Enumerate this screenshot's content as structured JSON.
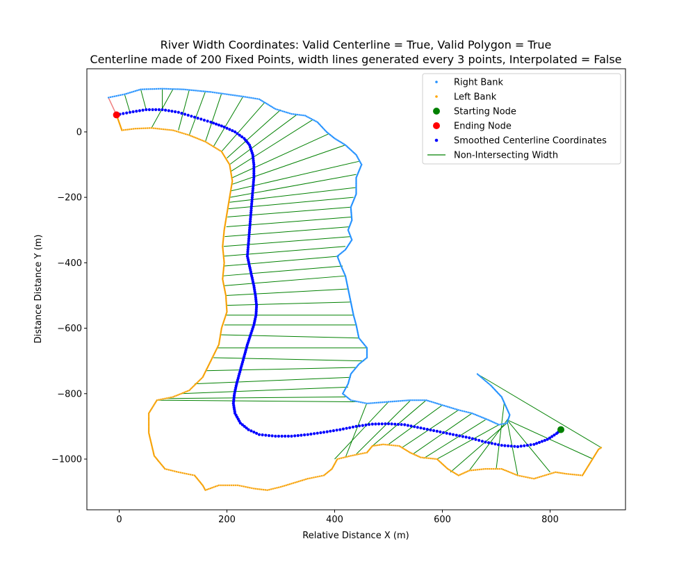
{
  "chart_data": {
    "type": "scatter",
    "title_line1": "River Width Coordinates: Valid Centerline = True, Valid Polygon = True",
    "title_line2": "Centerline made of 200 Fixed Points, width lines generated every 3 points, Interpolated = False",
    "xlabel": "Relative Distance X (m)",
    "ylabel": "Distance Distance Y (m)",
    "xlim": [
      -60,
      940
    ],
    "ylim": [
      -1155,
      193
    ],
    "xticks": [
      0,
      200,
      400,
      600,
      800
    ],
    "yticks": [
      0,
      -200,
      -400,
      -600,
      -800,
      -1000
    ],
    "legend_position": "upper right",
    "grid": false,
    "legend": [
      {
        "label": "Right Bank",
        "color": "#1f8fff",
        "marker": "dot-small"
      },
      {
        "label": "Left Bank",
        "color": "#ffa500",
        "marker": "dot-small"
      },
      {
        "label": "Starting Node",
        "color": "#008000",
        "marker": "dot-large"
      },
      {
        "label": "Ending Node",
        "color": "#ff0000",
        "marker": "dot-large"
      },
      {
        "label": "Smoothed Centerline Coordinates",
        "color": "#0000ff",
        "marker": "dot-medium"
      },
      {
        "label": "Non-Intersecting Width",
        "color": "#008000",
        "marker": "line"
      }
    ],
    "right_bank": [
      [
        -20,
        105
      ],
      [
        10,
        115
      ],
      [
        40,
        130
      ],
      [
        80,
        132
      ],
      [
        120,
        130
      ],
      [
        150,
        125
      ],
      [
        170,
        122
      ],
      [
        200,
        115
      ],
      [
        230,
        108
      ],
      [
        260,
        100
      ],
      [
        290,
        70
      ],
      [
        320,
        55
      ],
      [
        345,
        50
      ],
      [
        368,
        30
      ],
      [
        385,
        0
      ],
      [
        400,
        -20
      ],
      [
        420,
        -40
      ],
      [
        440,
        -70
      ],
      [
        450,
        -100
      ],
      [
        440,
        -140
      ],
      [
        440,
        -190
      ],
      [
        430,
        -230
      ],
      [
        432,
        -270
      ],
      [
        425,
        -300
      ],
      [
        432,
        -330
      ],
      [
        420,
        -360
      ],
      [
        405,
        -380
      ],
      [
        412,
        -410
      ],
      [
        420,
        -440
      ],
      [
        425,
        -480
      ],
      [
        430,
        -520
      ],
      [
        435,
        -560
      ],
      [
        440,
        -590
      ],
      [
        445,
        -630
      ],
      [
        460,
        -660
      ],
      [
        460,
        -690
      ],
      [
        445,
        -710
      ],
      [
        430,
        -740
      ],
      [
        425,
        -770
      ],
      [
        415,
        -800
      ],
      [
        430,
        -820
      ],
      [
        460,
        -830
      ],
      [
        500,
        -825
      ],
      [
        540,
        -820
      ],
      [
        570,
        -820
      ],
      [
        600,
        -835
      ],
      [
        630,
        -850
      ],
      [
        655,
        -860
      ],
      [
        685,
        -880
      ],
      [
        705,
        -895
      ],
      [
        720,
        -890
      ],
      [
        725,
        -865
      ],
      [
        710,
        -810
      ],
      [
        690,
        -775
      ],
      [
        665,
        -740
      ]
    ],
    "left_bank": [
      [
        -5,
        52
      ],
      [
        5,
        5
      ],
      [
        30,
        10
      ],
      [
        60,
        12
      ],
      [
        100,
        5
      ],
      [
        130,
        -10
      ],
      [
        160,
        -30
      ],
      [
        190,
        -60
      ],
      [
        205,
        -100
      ],
      [
        210,
        -150
      ],
      [
        205,
        -200
      ],
      [
        200,
        -250
      ],
      [
        195,
        -300
      ],
      [
        192,
        -350
      ],
      [
        195,
        -400
      ],
      [
        192,
        -450
      ],
      [
        198,
        -500
      ],
      [
        200,
        -550
      ],
      [
        190,
        -600
      ],
      [
        185,
        -650
      ],
      [
        170,
        -700
      ],
      [
        155,
        -750
      ],
      [
        130,
        -790
      ],
      [
        100,
        -810
      ],
      [
        70,
        -820
      ],
      [
        55,
        -860
      ],
      [
        55,
        -920
      ],
      [
        65,
        -990
      ],
      [
        85,
        -1030
      ],
      [
        110,
        -1040
      ],
      [
        140,
        -1050
      ],
      [
        155,
        -1080
      ],
      [
        160,
        -1095
      ],
      [
        185,
        -1080
      ],
      [
        220,
        -1080
      ],
      [
        250,
        -1090
      ],
      [
        275,
        -1095
      ],
      [
        300,
        -1085
      ],
      [
        320,
        -1075
      ],
      [
        350,
        -1060
      ],
      [
        380,
        -1050
      ],
      [
        395,
        -1030
      ],
      [
        405,
        -1000
      ],
      [
        430,
        -990
      ],
      [
        460,
        -980
      ],
      [
        470,
        -960
      ],
      [
        490,
        -955
      ],
      [
        520,
        -960
      ],
      [
        540,
        -980
      ],
      [
        560,
        -995
      ],
      [
        590,
        -1000
      ],
      [
        610,
        -1030
      ],
      [
        630,
        -1050
      ],
      [
        650,
        -1035
      ],
      [
        680,
        -1030
      ],
      [
        710,
        -1030
      ],
      [
        740,
        -1050
      ],
      [
        770,
        -1060
      ],
      [
        790,
        -1050
      ],
      [
        810,
        -1040
      ],
      [
        830,
        -1045
      ],
      [
        860,
        -1050
      ],
      [
        875,
        -1010
      ],
      [
        890,
        -970
      ],
      [
        895,
        -965
      ]
    ],
    "centerline": [
      [
        -5,
        52
      ],
      [
        20,
        60
      ],
      [
        50,
        68
      ],
      [
        80,
        68
      ],
      [
        110,
        60
      ],
      [
        140,
        45
      ],
      [
        170,
        30
      ],
      [
        195,
        15
      ],
      [
        215,
        0
      ],
      [
        232,
        -20
      ],
      [
        242,
        -40
      ],
      [
        248,
        -70
      ],
      [
        250,
        -100
      ],
      [
        250,
        -140
      ],
      [
        248,
        -180
      ],
      [
        246,
        -220
      ],
      [
        244,
        -260
      ],
      [
        242,
        -300
      ],
      [
        240,
        -340
      ],
      [
        238,
        -380
      ],
      [
        242,
        -410
      ],
      [
        246,
        -440
      ],
      [
        250,
        -470
      ],
      [
        253,
        -500
      ],
      [
        255,
        -530
      ],
      [
        254,
        -560
      ],
      [
        250,
        -590
      ],
      [
        244,
        -620
      ],
      [
        238,
        -650
      ],
      [
        233,
        -680
      ],
      [
        228,
        -710
      ],
      [
        223,
        -740
      ],
      [
        218,
        -770
      ],
      [
        214,
        -800
      ],
      [
        212,
        -830
      ],
      [
        215,
        -860
      ],
      [
        225,
        -890
      ],
      [
        240,
        -910
      ],
      [
        260,
        -925
      ],
      [
        290,
        -930
      ],
      [
        320,
        -930
      ],
      [
        350,
        -925
      ],
      [
        380,
        -918
      ],
      [
        410,
        -910
      ],
      [
        440,
        -900
      ],
      [
        470,
        -893
      ],
      [
        500,
        -892
      ],
      [
        530,
        -895
      ],
      [
        560,
        -905
      ],
      [
        590,
        -915
      ],
      [
        620,
        -925
      ],
      [
        650,
        -935
      ],
      [
        680,
        -948
      ],
      [
        710,
        -958
      ],
      [
        740,
        -962
      ],
      [
        770,
        -955
      ],
      [
        795,
        -940
      ],
      [
        812,
        -922
      ],
      [
        820,
        -910
      ]
    ],
    "start_node": [
      820,
      -910
    ],
    "end_node": [
      -5,
      52
    ],
    "closing_segment": [
      [
        -20,
        105
      ],
      [
        -5,
        52
      ],
      [
        5,
        5
      ]
    ],
    "gap_segment": [
      [
        570,
        -820
      ],
      [
        600,
        -835
      ]
    ],
    "width_lines": [
      [
        [
          10,
          115
        ],
        [
          20,
          60
        ]
      ],
      [
        [
          40,
          130
        ],
        [
          50,
          68
        ]
      ],
      [
        [
          80,
          132
        ],
        [
          80,
          68
        ]
      ],
      [
        [
          100,
          131
        ],
        [
          60,
          12
        ]
      ],
      [
        [
          130,
          128
        ],
        [
          110,
          5
        ]
      ],
      [
        [
          160,
          123
        ],
        [
          130,
          -10
        ]
      ],
      [
        [
          190,
          117
        ],
        [
          160,
          -30
        ]
      ],
      [
        [
          230,
          108
        ],
        [
          175,
          -45
        ]
      ],
      [
        [
          270,
          90
        ],
        [
          190,
          -60
        ]
      ],
      [
        [
          300,
          68
        ],
        [
          200,
          -80
        ]
      ],
      [
        [
          330,
          53
        ],
        [
          205,
          -100
        ]
      ],
      [
        [
          360,
          38
        ],
        [
          208,
          -120
        ]
      ],
      [
        [
          390,
          -5
        ],
        [
          210,
          -140
        ]
      ],
      [
        [
          420,
          -40
        ],
        [
          210,
          -160
        ]
      ],
      [
        [
          445,
          -90
        ],
        [
          208,
          -180
        ]
      ],
      [
        [
          440,
          -130
        ],
        [
          206,
          -200
        ]
      ],
      [
        [
          440,
          -170
        ],
        [
          205,
          -215
        ]
      ],
      [
        [
          435,
          -200
        ],
        [
          203,
          -235
        ]
      ],
      [
        [
          430,
          -230
        ],
        [
          201,
          -260
        ]
      ],
      [
        [
          432,
          -260
        ],
        [
          199,
          -290
        ]
      ],
      [
        [
          428,
          -290
        ],
        [
          196,
          -320
        ]
      ],
      [
        [
          430,
          -320
        ],
        [
          194,
          -350
        ]
      ],
      [
        [
          420,
          -350
        ],
        [
          193,
          -380
        ]
      ],
      [
        [
          408,
          -380
        ],
        [
          195,
          -410
        ]
      ],
      [
        [
          415,
          -410
        ],
        [
          193,
          -440
        ]
      ],
      [
        [
          420,
          -440
        ],
        [
          195,
          -470
        ]
      ],
      [
        [
          425,
          -480
        ],
        [
          198,
          -500
        ]
      ],
      [
        [
          430,
          -520
        ],
        [
          200,
          -530
        ]
      ],
      [
        [
          435,
          -560
        ],
        [
          198,
          -560
        ]
      ],
      [
        [
          440,
          -590
        ],
        [
          195,
          -590
        ]
      ],
      [
        [
          445,
          -630
        ],
        [
          188,
          -620
        ]
      ],
      [
        [
          460,
          -660
        ],
        [
          182,
          -660
        ]
      ],
      [
        [
          455,
          -700
        ],
        [
          175,
          -690
        ]
      ],
      [
        [
          440,
          -720
        ],
        [
          160,
          -730
        ]
      ],
      [
        [
          430,
          -750
        ],
        [
          140,
          -770
        ]
      ],
      [
        [
          425,
          -780
        ],
        [
          115,
          -800
        ]
      ],
      [
        [
          420,
          -810
        ],
        [
          85,
          -815
        ]
      ],
      [
        [
          440,
          -825
        ],
        [
          70,
          -820
        ]
      ],
      [
        [
          500,
          -825
        ],
        [
          400,
          -1000
        ]
      ],
      [
        [
          460,
          -828
        ],
        [
          420,
          -995
        ]
      ],
      [
        [
          540,
          -822
        ],
        [
          440,
          -985
        ]
      ],
      [
        [
          570,
          -820
        ],
        [
          470,
          -960
        ]
      ],
      [
        [
          600,
          -835
        ],
        [
          500,
          -955
        ]
      ],
      [
        [
          630,
          -850
        ],
        [
          525,
          -965
        ]
      ],
      [
        [
          655,
          -860
        ],
        [
          545,
          -985
        ]
      ],
      [
        [
          680,
          -880
        ],
        [
          565,
          -998
        ]
      ],
      [
        [
          705,
          -895
        ],
        [
          590,
          -1000
        ]
      ],
      [
        [
          720,
          -890
        ],
        [
          615,
          -1040
        ]
      ],
      [
        [
          725,
          -870
        ],
        [
          650,
          -1035
        ]
      ],
      [
        [
          715,
          -825
        ],
        [
          700,
          -1030
        ]
      ],
      [
        [
          720,
          -880
        ],
        [
          740,
          -1050
        ]
      ],
      [
        [
          720,
          -880
        ],
        [
          800,
          -1040
        ]
      ],
      [
        [
          720,
          -880
        ],
        [
          880,
          -1000
        ]
      ],
      [
        [
          665,
          -740
        ],
        [
          895,
          -965
        ]
      ]
    ]
  }
}
